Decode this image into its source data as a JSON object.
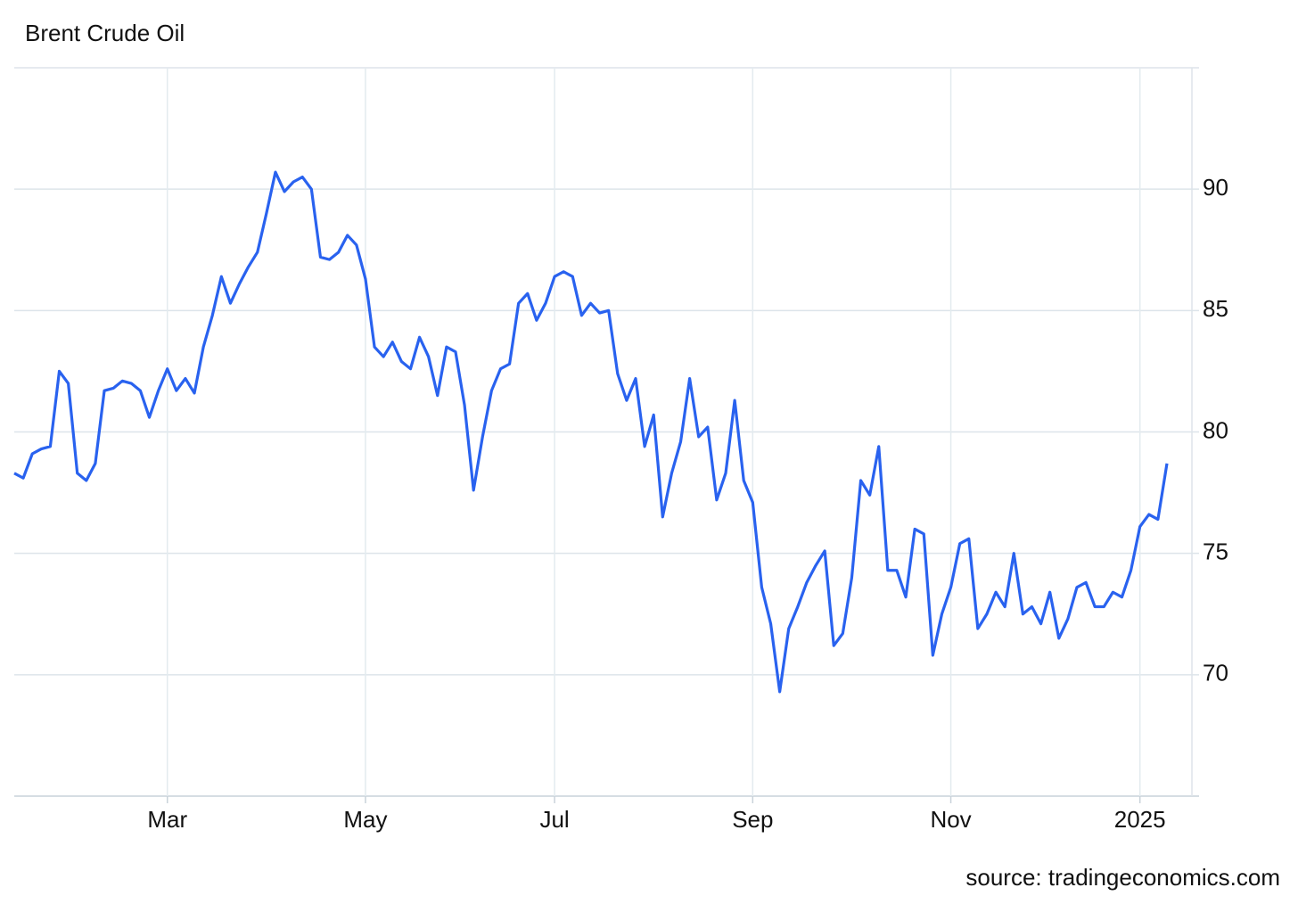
{
  "chart_data": {
    "type": "line",
    "title": "Brent Crude Oil",
    "source": "source: tradingeconomics.com",
    "categories": [
      null,
      null,
      null,
      null,
      null,
      null,
      null,
      null,
      null,
      null,
      null,
      null,
      null,
      null,
      null,
      null,
      null,
      "Mar",
      null,
      null,
      null,
      null,
      null,
      null,
      null,
      null,
      null,
      null,
      null,
      null,
      null,
      null,
      null,
      null,
      null,
      null,
      null,
      null,
      null,
      "May",
      null,
      null,
      null,
      null,
      null,
      null,
      null,
      null,
      null,
      null,
      null,
      null,
      null,
      null,
      null,
      null,
      null,
      null,
      null,
      null,
      "Jul",
      null,
      null,
      null,
      null,
      null,
      null,
      null,
      null,
      null,
      null,
      null,
      null,
      null,
      null,
      null,
      null,
      null,
      null,
      null,
      null,
      null,
      "Sep",
      null,
      null,
      null,
      null,
      null,
      null,
      null,
      null,
      null,
      null,
      null,
      null,
      null,
      null,
      null,
      null,
      null,
      null,
      null,
      null,
      null,
      "Nov",
      null,
      null,
      null,
      null,
      null,
      null,
      null,
      null,
      null,
      null,
      null,
      null,
      null,
      null,
      null,
      null,
      null,
      null,
      null,
      null,
      "2025",
      null,
      null,
      null
    ],
    "series": [
      {
        "name": "Brent Crude Oil",
        "color": "#2962ef",
        "values": [
          78.3,
          78.1,
          79.1,
          79.3,
          79.4,
          82.5,
          82.0,
          78.3,
          78.0,
          78.7,
          81.7,
          81.8,
          82.1,
          82.0,
          81.7,
          80.6,
          81.7,
          82.6,
          81.7,
          82.2,
          81.6,
          83.5,
          84.8,
          86.4,
          85.3,
          86.1,
          86.8,
          87.4,
          89.0,
          90.7,
          89.9,
          90.3,
          90.5,
          90.0,
          87.2,
          87.1,
          87.4,
          88.1,
          87.7,
          86.3,
          83.5,
          83.1,
          83.7,
          82.9,
          82.6,
          83.9,
          83.1,
          81.5,
          83.5,
          83.3,
          81.1,
          77.6,
          79.8,
          81.7,
          82.6,
          82.8,
          85.3,
          85.7,
          84.6,
          85.3,
          86.4,
          86.6,
          86.4,
          84.8,
          85.3,
          84.9,
          85.0,
          82.4,
          81.3,
          82.2,
          79.4,
          80.7,
          76.5,
          78.3,
          79.6,
          82.2,
          79.8,
          80.2,
          77.2,
          78.3,
          81.3,
          78.0,
          77.1,
          73.6,
          72.1,
          69.3,
          71.9,
          72.8,
          73.8,
          74.5,
          75.1,
          71.2,
          71.7,
          74.0,
          78.0,
          77.4,
          79.4,
          74.3,
          74.3,
          73.2,
          76.0,
          75.8,
          70.8,
          72.5,
          73.6,
          75.4,
          75.6,
          71.9,
          72.5,
          73.4,
          72.8,
          75.0,
          72.5,
          72.8,
          72.1,
          73.4,
          71.5,
          72.3,
          73.6,
          73.8,
          72.8,
          72.8,
          73.4,
          73.2,
          74.3,
          76.1,
          76.6,
          76.4,
          78.7
        ]
      }
    ],
    "ylim": [
      65,
      95
    ],
    "yticks": [
      70,
      75,
      80,
      85,
      90
    ],
    "grid": true
  }
}
